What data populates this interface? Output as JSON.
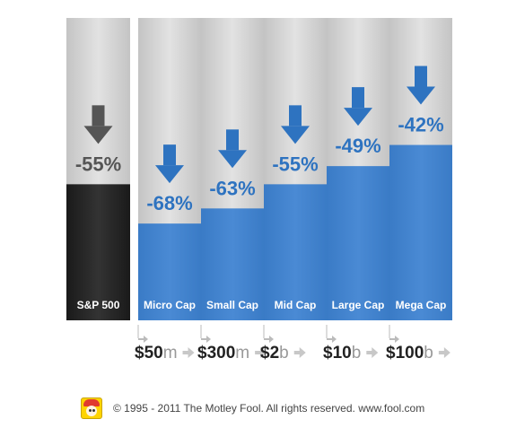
{
  "chart_data": {
    "type": "bar",
    "unit": "%",
    "ylim": [
      -100,
      0
    ],
    "categories": [
      "S&P 500",
      "Micro Cap",
      "Small Cap",
      "Mid Cap",
      "Large Cap",
      "Mega Cap"
    ],
    "values": [
      -55,
      -68,
      -63,
      -55,
      -49,
      -42
    ],
    "value_labels": [
      "-55%",
      "-68%",
      "-63%",
      "-55%",
      "-49%",
      "-42%"
    ],
    "thresholds": [
      {
        "num": "$50",
        "unit": "m"
      },
      {
        "num": "$300",
        "unit": "m"
      },
      {
        "num": "$2",
        "unit": "b"
      },
      {
        "num": "$10",
        "unit": "b"
      },
      {
        "num": "$100",
        "unit": "b"
      }
    ],
    "colors": {
      "benchmark_bar": "#222222",
      "cap_bar": "#3d7fc9",
      "remaining": "#d4d4d4",
      "arrow_dark": "#555555",
      "arrow_blue": "#2e73c0",
      "pct_dark": "#555555",
      "pct_blue": "#2e73c0"
    }
  },
  "footer": {
    "logo_icon": "jester-hat-logo",
    "copyright": "© 1995 - 2011 The Motley Fool. All rights reserved. www.fool.com"
  }
}
